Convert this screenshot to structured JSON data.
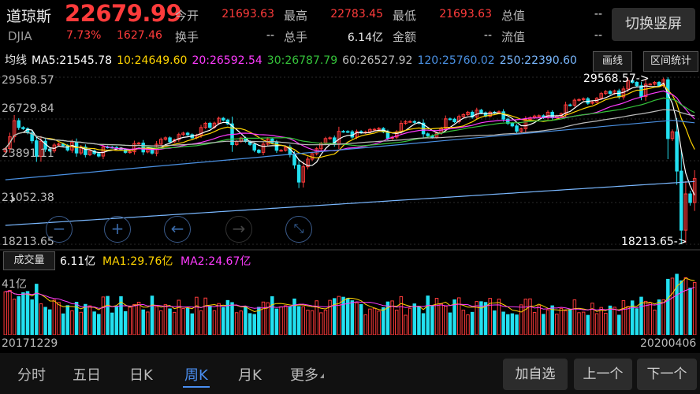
{
  "header": {
    "name": "道琼斯",
    "code": "DJIA",
    "price": "22679.99",
    "change_pct": "7.73%",
    "change": "1627.46",
    "fields": [
      {
        "label": "今开",
        "value": "21693.63"
      },
      {
        "label": "最高",
        "value": "22783.45"
      },
      {
        "label": "最低",
        "value": "21693.63"
      },
      {
        "label": "总值",
        "value": "--"
      },
      {
        "label": "换手",
        "value": "--"
      },
      {
        "label": "总手",
        "value": "6.14亿"
      },
      {
        "label": "金额",
        "value": "--"
      },
      {
        "label": "流值",
        "value": "--"
      }
    ],
    "rotate_button": "切换竖屏"
  },
  "ma_legend": {
    "title": "均线",
    "items": [
      {
        "label": "MA5:21545.78",
        "color": "#ffffff"
      },
      {
        "label": "10:24649.60",
        "color": "#ffd400"
      },
      {
        "label": "20:26592.54",
        "color": "#ff3bff"
      },
      {
        "label": "30:26787.79",
        "color": "#35c23a"
      },
      {
        "label": "60:26527.92",
        "color": "#bdbdbd"
      },
      {
        "label": "120:25760.02",
        "color": "#4a90e2"
      },
      {
        "label": "250:22390.60",
        "color": "#7ab8ff"
      }
    ],
    "draw_button": "画线",
    "range_button": "区间统计"
  },
  "chart_data": [
    {
      "type": "candlestick",
      "title": "",
      "period": "周K",
      "y_ticks": [
        "29568.57",
        "26729.84",
        "23891.11",
        "21052.38",
        "18213.65"
      ],
      "ylim": [
        18213.65,
        29568.57
      ],
      "annotations": [
        {
          "text": "29568.57->",
          "value": 29568.57
        },
        {
          "text": "18213.65->",
          "value": 18213.65
        }
      ],
      "x_start_label": "20171229",
      "x_end_label": "20200406",
      "up_color": "#ff3b3b",
      "down_color": "#22e0f0",
      "closes": [
        24719,
        25520,
        26616,
        26150,
        26070,
        25790,
        25250,
        24190,
        25220,
        24680,
        24560,
        24960,
        25030,
        24920,
        24620,
        25150,
        24420,
        24820,
        24300,
        24560,
        24380,
        24210,
        24830,
        24810,
        24800,
        24730,
        24650,
        24460,
        24500,
        25060,
        25090,
        24490,
        24700,
        24410,
        25020,
        25350,
        25450,
        25180,
        25310,
        25670,
        25770,
        25660,
        25450,
        25630,
        26150,
        26440,
        26160,
        26450,
        26780,
        26660,
        26400,
        24990,
        25200,
        25440,
        25200,
        25000,
        24610,
        24460,
        25020,
        25370,
        25120,
        24600,
        24600,
        24810,
        24300,
        23600,
        22440,
        23480,
        24000,
        24370,
        24710,
        25060,
        25400,
        25450,
        25000,
        25890,
        25880,
        25860,
        25500,
        25880,
        25810,
        25850,
        26020,
        26030,
        26090,
        25850,
        25420,
        25500,
        25850,
        26430,
        26560,
        26560,
        26500,
        26450,
        25720,
        25590,
        25490,
        25770,
        26090,
        26740,
        26720,
        26540,
        26900,
        27030,
        27190,
        26860,
        27330,
        27150,
        26920,
        27190,
        27150,
        27220,
        26720,
        26430,
        26260,
        25900,
        26060,
        26700,
        26820,
        26930,
        26950,
        26820,
        27190,
        26820,
        26930,
        27080,
        27690,
        27670,
        28010,
        28050,
        28110,
        27800,
        27880,
        28140,
        28460,
        28600,
        28460,
        28640,
        28230,
        28770,
        29340,
        29220,
        28990,
        28260,
        29100,
        29100,
        29220,
        28990,
        29400,
        25400,
        25860,
        23190,
        19170,
        21640,
        21050,
        22680
      ],
      "ma_values": {
        "MA5": "21545.78",
        "MA10": "24649.60",
        "MA20": "26592.54",
        "MA30": "26787.79",
        "MA60": "26527.92",
        "MA120": "25760.02",
        "MA250": "22390.60"
      }
    },
    {
      "type": "bar",
      "title": "成交量",
      "y_tick": "41亿",
      "latest": "6.11亿",
      "MA1": "29.76亿",
      "MA2": "24.67亿",
      "unit": "亿"
    }
  ],
  "volume_legend": {
    "tab": "成交量",
    "latest": "6.11亿",
    "ma1": "MA1:29.76亿",
    "ma2": "MA2:24.67亿",
    "ma1_color": "#ffd400",
    "ma2_color": "#ff3bff"
  },
  "bottom_bar": {
    "tabs": [
      "分时",
      "五日",
      "日K",
      "周K",
      "月K",
      "更多"
    ],
    "active_tab": "周K",
    "add_watch": "加自选",
    "prev": "上一个",
    "next": "下一个"
  }
}
